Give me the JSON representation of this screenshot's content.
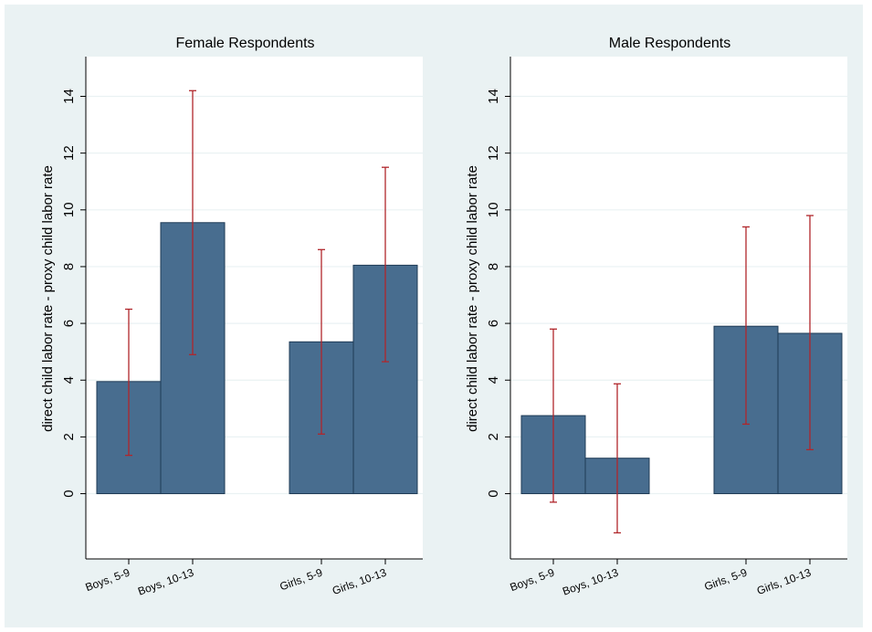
{
  "chart_data": [
    {
      "type": "bar",
      "title": "Female Respondents",
      "ylabel": "direct child labor rate - proxy child labor rate",
      "xlabel": "",
      "ylim": [
        -2.3,
        15.4
      ],
      "yticks": [
        0,
        2,
        4,
        6,
        8,
        10,
        12,
        14
      ],
      "grid": true,
      "categories": [
        "Boys, 5-9",
        "Boys, 10-13",
        "Girls, 5-9",
        "Girls, 10-13"
      ],
      "values": [
        3.95,
        9.55,
        5.35,
        8.05
      ],
      "ci_low": [
        1.35,
        4.9,
        2.1,
        4.65
      ],
      "ci_high": [
        6.5,
        14.2,
        8.6,
        11.5
      ],
      "bar_color": "#486d8f",
      "error_color": "#b0262b"
    },
    {
      "type": "bar",
      "title": "Male Respondents",
      "ylabel": "direct child labor rate - proxy child labor rate",
      "xlabel": "",
      "ylim": [
        -2.3,
        15.4
      ],
      "yticks": [
        0,
        2,
        4,
        6,
        8,
        10,
        12,
        14
      ],
      "grid": true,
      "categories": [
        "Boys, 5-9",
        "Boys, 10-13",
        "Girls, 5-9",
        "Girls, 10-13"
      ],
      "values": [
        2.75,
        1.25,
        5.9,
        5.65
      ],
      "ci_low": [
        -0.3,
        -1.38,
        2.45,
        1.55
      ],
      "ci_high": [
        5.8,
        3.87,
        9.4,
        9.8
      ],
      "bar_color": "#486d8f",
      "error_color": "#b0262b"
    }
  ]
}
